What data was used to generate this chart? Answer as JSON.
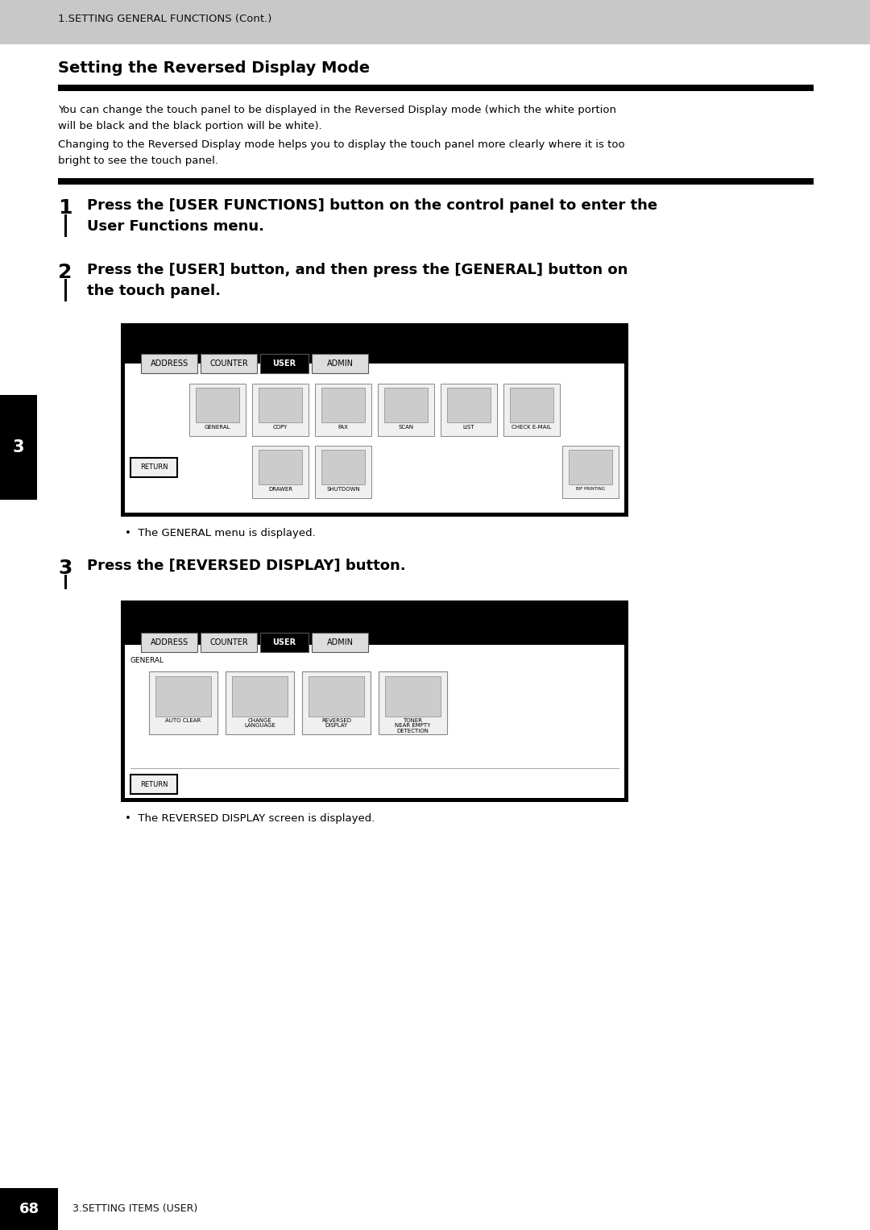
{
  "page_bg": "#ffffff",
  "header_bg": "#c8c8c8",
  "header_text": "1.SETTING GENERAL FUNCTIONS (Cont.)",
  "header_fontsize": 9.5,
  "footer_bg": "#000000",
  "footer_text_color": "#ffffff",
  "footer_number": "68",
  "footer_label": "3.SETTING ITEMS (USER)",
  "section_title": "Setting the Reversed Display Mode",
  "section_title_fontsize": 14,
  "para1_line1": "You can change the touch panel to be displayed in the Reversed Display mode (which the white portion",
  "para1_line2": "will be black and the black portion will be white).",
  "para1_line3": "Changing to the Reversed Display mode helps you to display the touch panel more clearly where it is too",
  "para1_line4": "bright to see the touch panel.",
  "para_fontsize": 9.5,
  "step1_num": "1",
  "step1_line1": "Press the [USER FUNCTIONS] button on the control panel to enter the",
  "step1_line2": "User Functions menu.",
  "step2_num": "2",
  "step2_line1": "Press the [USER] button, and then press the [GENERAL] button on",
  "step2_line2": "the touch panel.",
  "step3_num": "3",
  "step3_text": "Press the [REVERSED DISPLAY] button.",
  "step_fontsize": 13,
  "bullet1": "The GENERAL menu is displayed.",
  "bullet2": "The REVERSED DISPLAY screen is displayed.",
  "bullet_fontsize": 9.5,
  "side_tab_color": "#000000",
  "side_tab_text": "3",
  "side_tab_text_color": "#ffffff"
}
